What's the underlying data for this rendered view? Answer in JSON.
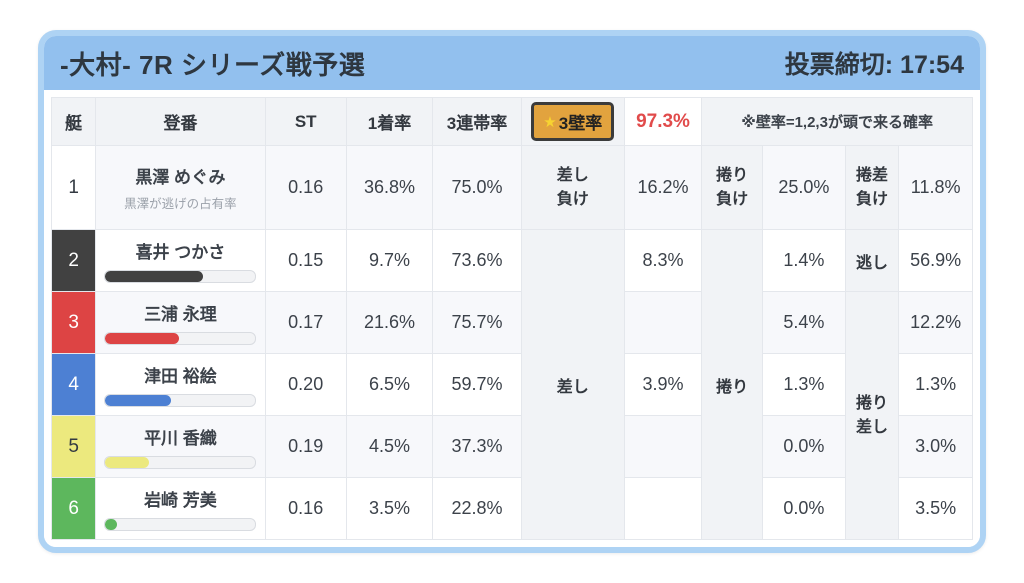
{
  "card": {
    "title": "-大村- 7R シリーズ戦予選",
    "deadline": "投票締切: 17:54",
    "colors": {
      "header_bg": "#92c0ee",
      "card_border": "#aed3f4",
      "accent_orange": "#e2a33e",
      "accent_red": "#e14b4b"
    }
  },
  "table": {
    "headers": {
      "boat": "艇",
      "racer": "登番",
      "st": "ST",
      "win": "1着率",
      "top3": "3連帯率",
      "wall_star": "★",
      "wall": "3壁率",
      "wall_value": "97.3%",
      "note": "※壁率=1,2,3が頭で来る確率"
    },
    "wall_labels": {
      "sashi_lose": "差し\n負け",
      "makuri_lose": "捲り\n負け",
      "makurizashi_lose": "捲差\n負け",
      "sashi": "差し",
      "makuri": "捲り",
      "nigashi": "逃し",
      "makurizashi": "捲り\n差し"
    },
    "rows": [
      {
        "boat": "1",
        "boat_bg": "#ffffff",
        "boat_color": "#333a42",
        "name": "黒澤 めぐみ",
        "subtitle": "黒澤が逃げの占有率",
        "st": "0.16",
        "win": "36.8%",
        "top3": "75.0%",
        "v1": "16.2%",
        "v2": "25.0%",
        "v3": "11.8%"
      },
      {
        "boat": "2",
        "boat_bg": "#414141",
        "boat_color": "#ffffff",
        "name": "喜井 つかさ",
        "bar_pct": 65,
        "bar_color": "#414141",
        "st": "0.15",
        "win": "9.7%",
        "top3": "73.6%",
        "v1": "8.3%",
        "v2": "1.4%",
        "v3": "56.9%"
      },
      {
        "boat": "3",
        "boat_bg": "#dd4444",
        "boat_color": "#ffffff",
        "name": "三浦 永理",
        "bar_pct": 49,
        "bar_color": "#dd4444",
        "st": "0.17",
        "win": "21.6%",
        "top3": "75.7%",
        "v1": "",
        "v2": "5.4%",
        "v3": "12.2%"
      },
      {
        "boat": "4",
        "boat_bg": "#4d80d3",
        "boat_color": "#ffffff",
        "name": "津田 裕絵",
        "bar_pct": 44,
        "bar_color": "#4d80d3",
        "st": "0.20",
        "win": "6.5%",
        "top3": "59.7%",
        "v1": "3.9%",
        "v2": "1.3%",
        "v3": "1.3%"
      },
      {
        "boat": "5",
        "boat_bg": "#ece97e",
        "boat_color": "#333a42",
        "name": "平川 香織",
        "bar_pct": 29,
        "bar_color": "#ece97e",
        "st": "0.19",
        "win": "4.5%",
        "top3": "37.3%",
        "v1": "",
        "v2": "0.0%",
        "v3": "3.0%"
      },
      {
        "boat": "6",
        "boat_bg": "#5db75d",
        "boat_color": "#ffffff",
        "name": "岩崎 芳美",
        "bar_pct": 8,
        "bar_color": "#5db75d",
        "st": "0.16",
        "win": "3.5%",
        "top3": "22.8%",
        "v1": "",
        "v2": "0.0%",
        "v3": "3.5%"
      }
    ]
  }
}
